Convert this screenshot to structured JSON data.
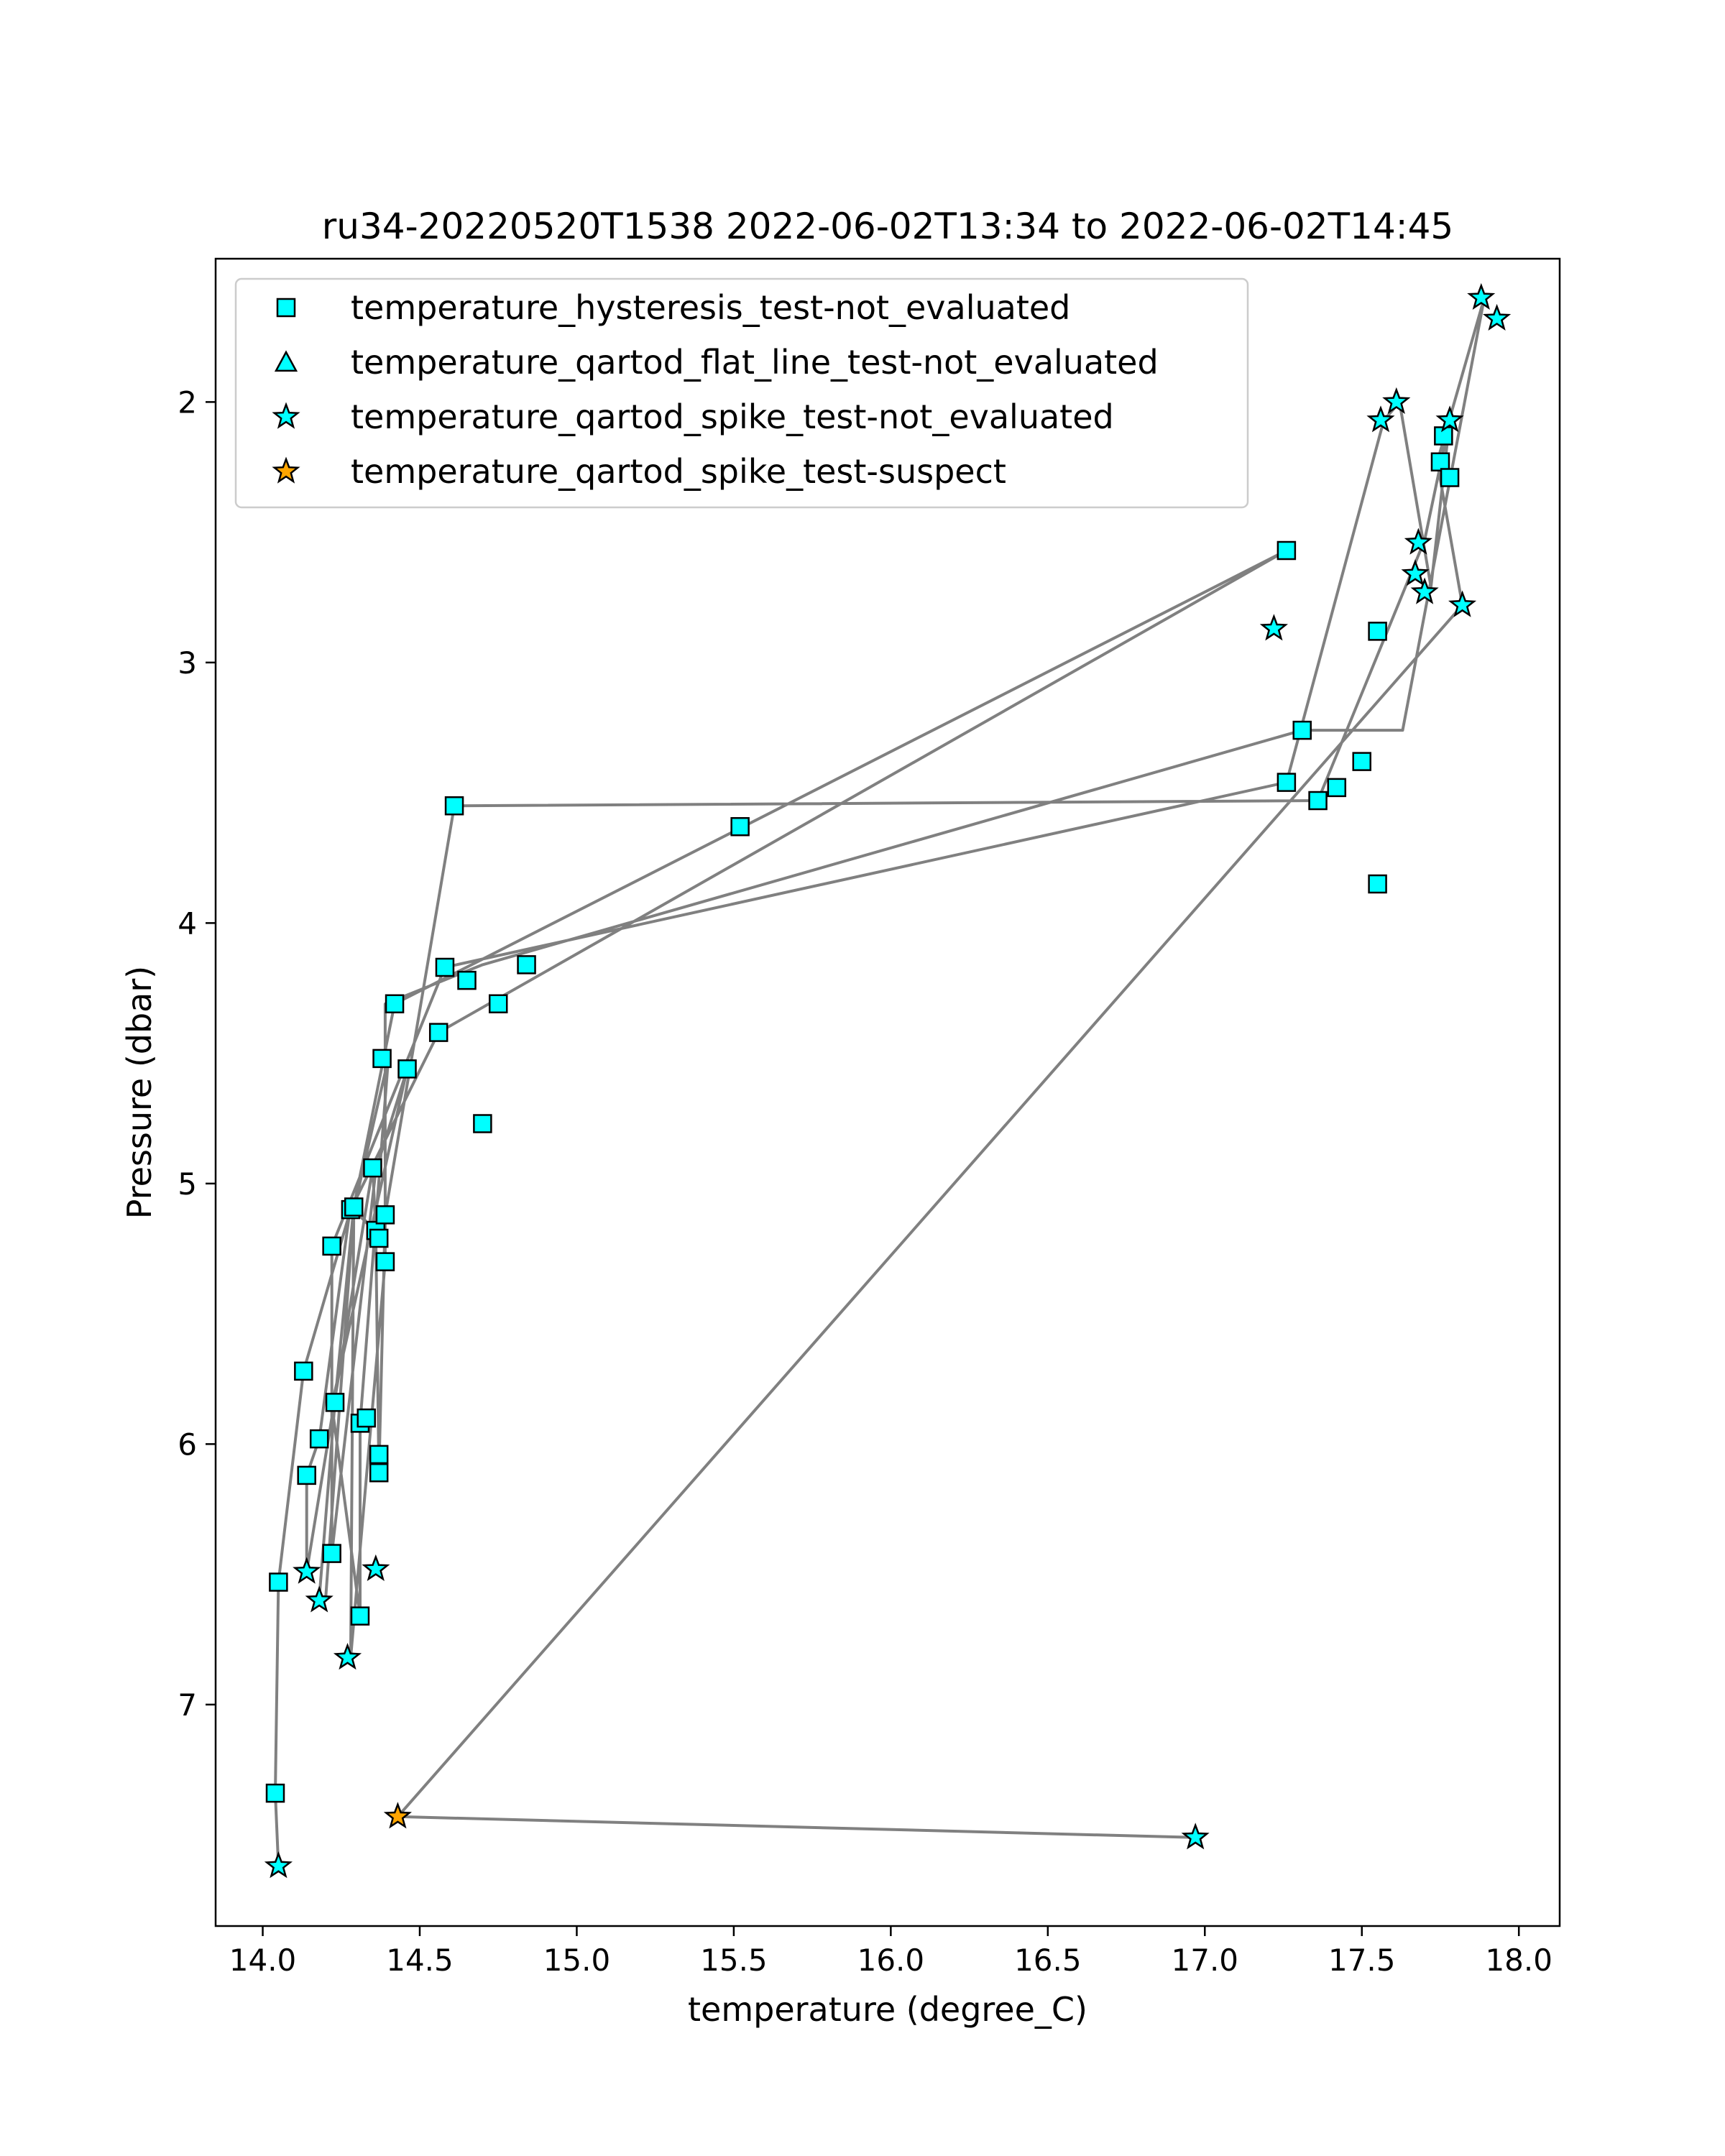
{
  "chart_data": {
    "type": "scatter",
    "title": "ru34-20220520T1538 2022-06-02T13:34 to 2022-06-02T14:45",
    "xlabel": "temperature (degree_C)",
    "ylabel": "Pressure (dbar)",
    "xlim": [
      13.85,
      18.13
    ],
    "ylim": [
      7.85,
      1.45
    ],
    "y_inverted": true,
    "xticks": [
      "14.0",
      "14.5",
      "15.0",
      "15.5",
      "16.0",
      "16.5",
      "17.0",
      "17.5",
      "18.0"
    ],
    "xtick_values": [
      14.0,
      14.5,
      15.0,
      15.5,
      16.0,
      16.5,
      17.0,
      17.5,
      18.0
    ],
    "yticks": [
      "2",
      "3",
      "4",
      "5",
      "6",
      "7"
    ],
    "ytick_values": [
      2,
      3,
      4,
      5,
      6,
      7
    ],
    "grid": false,
    "legend_position": "top-left",
    "line_color": "#808080",
    "legend": [
      {
        "label": "temperature_hysteresis_test-not_evaluated",
        "marker": "square",
        "color": "#00ffff"
      },
      {
        "label": "temperature_qartod_flat_line_test-not_evaluated",
        "marker": "triangle",
        "color": "#00ffff"
      },
      {
        "label": "temperature_qartod_spike_test-not_evaluated",
        "marker": "star",
        "color": "#00ffff"
      },
      {
        "label": "temperature_qartod_spike_test-suspect",
        "marker": "star",
        "color": "#ffa500"
      }
    ],
    "line_points": [
      [
        16.97,
        7.51
      ],
      [
        14.43,
        7.43
      ],
      [
        17.82,
        2.78
      ],
      [
        17.74,
        2.23
      ],
      [
        17.89,
        1.6
      ],
      [
        17.63,
        3.26
      ],
      [
        17.31,
        3.26
      ],
      [
        14.7,
        4.16
      ],
      [
        14.39,
        4.31
      ],
      [
        14.39,
        5.3
      ],
      [
        14.28,
        6.82
      ],
      [
        14.29,
        5.1
      ],
      [
        14.4,
        4.52
      ],
      [
        14.31,
        5.92
      ],
      [
        14.31,
        6.66
      ],
      [
        14.22,
        5.85
      ],
      [
        14.46,
        4.56
      ],
      [
        14.36,
        4.95
      ],
      [
        14.22,
        6.42
      ],
      [
        14.22,
        5.24
      ],
      [
        14.58,
        4.17
      ],
      [
        17.26,
        3.46
      ],
      [
        17.57,
        2.07
      ],
      [
        17.62,
        2.0
      ],
      [
        17.72,
        2.71
      ],
      [
        17.78,
        2.07
      ],
      [
        17.7,
        2.53
      ],
      [
        17.36,
        3.53
      ],
      [
        14.61,
        3.55
      ],
      [
        14.39,
        5.12
      ],
      [
        14.37,
        6.11
      ],
      [
        14.36,
        5.18
      ],
      [
        14.35,
        4.94
      ],
      [
        14.14,
        6.49
      ],
      [
        14.14,
        6.12
      ],
      [
        14.18,
        5.98
      ],
      [
        14.28,
        5.08
      ],
      [
        14.37,
        5.2
      ],
      [
        14.29,
        5.1
      ],
      [
        14.2,
        6.6
      ],
      [
        14.18,
        6.59
      ],
      [
        14.23,
        5.84
      ],
      [
        14.29,
        5.09
      ],
      [
        14.42,
        4.31
      ],
      [
        17.26,
        2.57
      ],
      [
        14.56,
        4.42
      ],
      [
        14.28,
        5.1
      ],
      [
        14.13,
        5.72
      ],
      [
        14.05,
        6.53
      ],
      [
        14.04,
        7.34
      ],
      [
        14.05,
        7.62
      ]
    ],
    "series": [
      {
        "name": "temperature_hysteresis_test-not_evaluated",
        "marker": "square",
        "color": "#00ffff",
        "points": [
          [
            14.04,
            7.34
          ],
          [
            14.05,
            6.53
          ],
          [
            14.13,
            5.72
          ],
          [
            14.14,
            6.12
          ],
          [
            14.18,
            5.98
          ],
          [
            14.22,
            6.42
          ],
          [
            14.22,
            5.24
          ],
          [
            14.23,
            5.84
          ],
          [
            14.28,
            5.1
          ],
          [
            14.29,
            5.09
          ],
          [
            14.31,
            5.92
          ],
          [
            14.31,
            6.66
          ],
          [
            14.33,
            5.9
          ],
          [
            14.35,
            4.94
          ],
          [
            14.36,
            5.18
          ],
          [
            14.37,
            5.21
          ],
          [
            14.37,
            6.04
          ],
          [
            14.37,
            6.11
          ],
          [
            14.38,
            4.52
          ],
          [
            14.39,
            5.12
          ],
          [
            14.39,
            5.3
          ],
          [
            14.42,
            4.31
          ],
          [
            14.46,
            4.56
          ],
          [
            14.56,
            4.42
          ],
          [
            14.58,
            4.17
          ],
          [
            14.61,
            3.55
          ],
          [
            14.65,
            4.22
          ],
          [
            14.7,
            4.77
          ],
          [
            14.75,
            4.31
          ],
          [
            14.84,
            4.16
          ],
          [
            15.52,
            3.63
          ],
          [
            17.26,
            2.57
          ],
          [
            17.26,
            3.46
          ],
          [
            17.31,
            3.26
          ],
          [
            17.36,
            3.53
          ],
          [
            17.42,
            3.48
          ],
          [
            17.5,
            3.38
          ],
          [
            17.55,
            2.88
          ],
          [
            17.55,
            3.85
          ],
          [
            17.75,
            2.23
          ],
          [
            17.76,
            2.13
          ],
          [
            17.78,
            2.29
          ]
        ]
      },
      {
        "name": "temperature_qartod_flat_line_test-not_evaluated",
        "marker": "triangle",
        "color": "#00ffff",
        "points": []
      },
      {
        "name": "temperature_qartod_spike_test-not_evaluated",
        "marker": "star",
        "color": "#00ffff",
        "points": [
          [
            14.05,
            7.62
          ],
          [
            14.14,
            6.49
          ],
          [
            14.18,
            6.6
          ],
          [
            14.27,
            6.82
          ],
          [
            14.36,
            6.48
          ],
          [
            16.97,
            7.51
          ],
          [
            17.22,
            2.87
          ],
          [
            17.56,
            2.07
          ],
          [
            17.61,
            2.0
          ],
          [
            17.67,
            2.66
          ],
          [
            17.68,
            2.54
          ],
          [
            17.7,
            2.73
          ],
          [
            17.78,
            2.07
          ],
          [
            17.82,
            2.78
          ],
          [
            17.88,
            1.6
          ],
          [
            17.93,
            1.68
          ]
        ]
      },
      {
        "name": "temperature_qartod_spike_test-suspect",
        "marker": "star",
        "color": "#ffa500",
        "points": [
          [
            14.43,
            7.43
          ]
        ]
      }
    ]
  }
}
